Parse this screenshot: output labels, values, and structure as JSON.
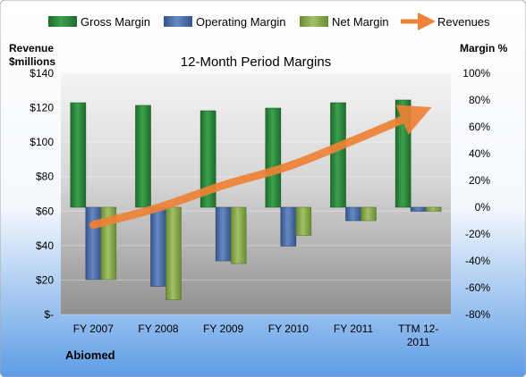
{
  "chart_data": {
    "type": "bar",
    "title": "12-Month Period Margins",
    "company": "Abiomed",
    "categories": [
      "FY 2007",
      "FY 2008",
      "FY 2009",
      "FY 2010",
      "FY 2011",
      "TTM 12-2011"
    ],
    "left_axis": {
      "label_line1": "Revenue",
      "label_line2": "$millions",
      "ylim": [
        0,
        140
      ],
      "ticks": [
        "$-",
        "$20",
        "$40",
        "$60",
        "$80",
        "$100",
        "$120",
        "$140"
      ]
    },
    "right_axis": {
      "label": "Margin %",
      "ylim": [
        -80,
        100
      ],
      "ticks": [
        "-80%",
        "-60%",
        "-40%",
        "-20%",
        "0%",
        "20%",
        "40%",
        "60%",
        "80%",
        "100%"
      ]
    },
    "series": [
      {
        "name": "Gross Margin",
        "axis": "right",
        "values": [
          78,
          76,
          72,
          74,
          78,
          80
        ]
      },
      {
        "name": "Operating Margin",
        "axis": "right",
        "values": [
          -54,
          -59,
          -40,
          -29,
          -10,
          -3
        ]
      },
      {
        "name": "Net Margin",
        "axis": "right",
        "values": [
          -54,
          -69,
          -42,
          -21,
          -10,
          -3
        ]
      },
      {
        "name": "Revenues",
        "type": "line",
        "axis": "left",
        "values": [
          52,
          62,
          75,
          86,
          101,
          117
        ]
      }
    ],
    "legend_position": "top",
    "colors": {
      "gross": "#2e8b3e",
      "operating": "#4f70ad",
      "net": "#8aab4f",
      "revenues": "#ee8236",
      "plot_top": "#f2f2f2",
      "plot_bottom": "#9a9a9a",
      "bg_bottom": "#5e9de6"
    }
  }
}
